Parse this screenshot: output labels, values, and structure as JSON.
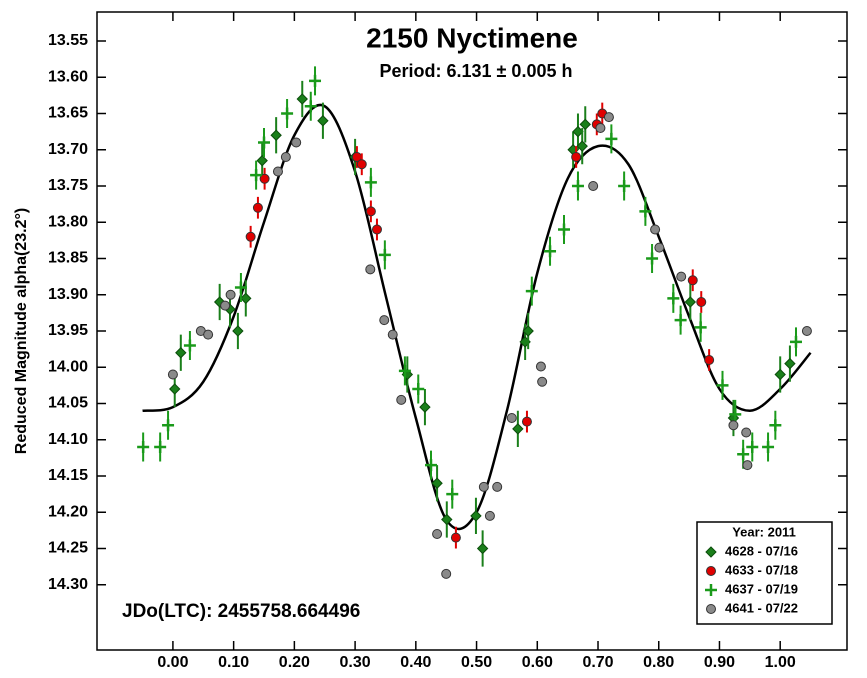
{
  "chart_data": {
    "type": "scatter",
    "title": "2150 Nyctimene",
    "subtitle": "Period: 6.131 ± 0.005 h",
    "y_label": "Reduced Magnitude alpha(23.2°)",
    "annotation": "JDo(LTC): 2455758.664496",
    "legend_title": "Year: 2011",
    "legend_position": "lower right",
    "y_inverted": true,
    "xlim": [
      -0.125,
      1.11
    ],
    "ylim": [
      13.51,
      14.39
    ],
    "xticks": [
      {
        "value": 0,
        "label": "0.00"
      },
      {
        "value": 0.1,
        "label": "0.10"
      },
      {
        "value": 0.2,
        "label": "0.20"
      },
      {
        "value": 0.3,
        "label": "0.30"
      },
      {
        "value": 0.4,
        "label": "0.40"
      },
      {
        "value": 0.5,
        "label": "0.50"
      },
      {
        "value": 0.6,
        "label": "0.60"
      },
      {
        "value": 0.7,
        "label": "0.70"
      },
      {
        "value": 0.8,
        "label": "0.80"
      },
      {
        "value": 0.9,
        "label": "0.90"
      },
      {
        "value": 1,
        "label": "1.00"
      }
    ],
    "yticks": [
      13.55,
      {
        "value": 13.6,
        "label": "13.60"
      },
      13.65,
      {
        "value": 13.7,
        "label": "13.70"
      },
      13.75,
      {
        "value": 13.8,
        "label": "13.80"
      },
      13.85,
      {
        "value": 13.9,
        "label": "13.90"
      },
      13.95,
      {
        "value": 14,
        "label": "14.00"
      },
      14.05,
      {
        "value": 14.1,
        "label": "14.10"
      },
      14.15,
      {
        "value": 14.2,
        "label": "14.20"
      },
      14.25,
      {
        "value": 14.3,
        "label": "14.30"
      }
    ],
    "fit": {
      "color": "#000000",
      "x": [
        -0.05,
        0,
        0.05,
        0.1,
        0.15,
        0.2,
        0.25,
        0.3,
        0.35,
        0.4,
        0.45,
        0.5,
        0.55,
        0.6,
        0.65,
        0.7,
        0.75,
        0.8,
        0.85,
        0.9,
        0.95,
        1,
        1.05
      ],
      "values": [
        14.06,
        14.055,
        14.02,
        13.93,
        13.8,
        13.68,
        13.64,
        13.73,
        13.9,
        14.07,
        14.21,
        14.2,
        14.06,
        13.87,
        13.74,
        13.695,
        13.72,
        13.82,
        13.93,
        14.03,
        14.06,
        14.03,
        13.98
      ]
    },
    "series": [
      {
        "name": "4628 - 07/16",
        "color": "#1a7f1a",
        "marker": "diamond",
        "error": 0.025,
        "x": [
          0.003,
          0.013,
          0.077,
          0.094,
          0.107,
          0.12,
          0.147,
          0.17,
          0.213,
          0.247,
          0.3,
          0.386,
          0.415,
          0.435,
          0.451,
          0.499,
          0.51,
          0.568,
          0.58,
          0.585,
          0.659,
          0.667,
          0.674,
          0.679,
          0.852,
          0.923,
          1.0,
          1.016
        ],
        "values": [
          14.03,
          13.98,
          13.91,
          13.92,
          13.95,
          13.905,
          13.715,
          13.68,
          13.63,
          13.66,
          13.71,
          14.01,
          14.055,
          14.16,
          14.21,
          14.205,
          14.25,
          14.085,
          13.965,
          13.95,
          13.7,
          13.675,
          13.695,
          13.665,
          13.91,
          14.07,
          14.01,
          13.995
        ]
      },
      {
        "name": "4633 - 07/18",
        "color": "#e00000",
        "marker": "circle",
        "error": 0.015,
        "x": [
          0.128,
          0.14,
          0.151,
          0.303,
          0.311,
          0.326,
          0.336,
          0.466,
          0.583,
          0.664,
          0.698,
          0.707,
          0.856,
          0.87,
          0.883
        ],
        "values": [
          13.82,
          13.78,
          13.74,
          13.71,
          13.72,
          13.785,
          13.81,
          14.235,
          14.075,
          13.71,
          13.665,
          13.65,
          13.88,
          13.91,
          13.99
        ]
      },
      {
        "name": "4637 - 07/19",
        "color": "#1a9a1a",
        "marker": "plus",
        "error": 0.02,
        "x": [
          -0.049,
          -0.021,
          -0.008,
          0.028,
          0.112,
          0.137,
          0.15,
          0.188,
          0.227,
          0.234,
          0.326,
          0.349,
          0.382,
          0.404,
          0.425,
          0.46,
          0.591,
          0.621,
          0.644,
          0.667,
          0.722,
          0.743,
          0.778,
          0.789,
          0.824,
          0.836,
          0.869,
          0.905,
          0.926,
          0.939,
          0.954,
          0.98,
          0.992,
          1.026
        ],
        "values": [
          14.11,
          14.11,
          14.08,
          13.97,
          13.89,
          13.735,
          13.69,
          13.65,
          13.64,
          13.605,
          13.745,
          13.845,
          14.005,
          14.03,
          14.135,
          14.175,
          13.895,
          13.84,
          13.81,
          13.75,
          13.685,
          13.75,
          13.785,
          13.85,
          13.905,
          13.935,
          13.945,
          14.025,
          14.065,
          14.12,
          14.11,
          14.11,
          14.08,
          13.965
        ]
      },
      {
        "name": "4641 - 07/22",
        "color": "#8a8a8a",
        "marker": "circle",
        "x": [
          0.0,
          0.046,
          0.058,
          0.086,
          0.095,
          0.173,
          0.186,
          0.203,
          0.325,
          0.348,
          0.362,
          0.376,
          0.435,
          0.45,
          0.512,
          0.522,
          0.534,
          0.558,
          0.606,
          0.608,
          0.692,
          0.704,
          0.718,
          0.794,
          0.801,
          0.837,
          0.923,
          0.944,
          0.946,
          1.044
        ],
        "values": [
          14.01,
          13.95,
          13.955,
          13.915,
          13.9,
          13.73,
          13.71,
          13.69,
          13.865,
          13.935,
          13.955,
          14.045,
          14.23,
          14.285,
          14.165,
          14.205,
          14.165,
          14.07,
          13.999,
          14.02,
          13.75,
          13.67,
          13.655,
          13.81,
          13.835,
          13.875,
          14.08,
          14.09,
          14.135,
          13.95
        ]
      }
    ]
  }
}
